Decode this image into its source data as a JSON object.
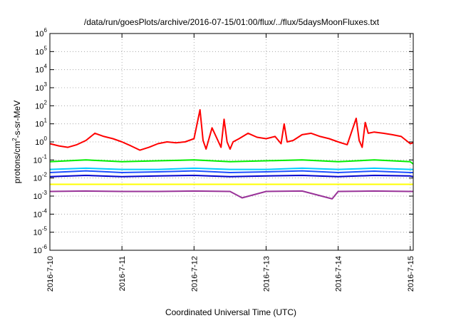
{
  "chart_data": {
    "type": "line",
    "title": "/data/run/goesPlots/archive/2016-07-15/01:00/flux/../flux/5daysMoonFluxes.txt",
    "xlabel": "Coordinated Universal Time (UTC)",
    "ylabel": "protons/cm2-s-sr-MeV",
    "ylabel_parts": [
      "protons/cm",
      "2",
      "-s-sr-MeV"
    ],
    "x_ticks": [
      "2016-7-10",
      "2016-7-11",
      "2016-7-12",
      "2016-7-13",
      "2016-7-14",
      "2016-7-15"
    ],
    "xlim": [
      "2016-07-10T00:00",
      "2016-07-15T01:00"
    ],
    "y_scale": "log",
    "ylim": [
      1e-06,
      1000000.0
    ],
    "y_ticks": [
      {
        "base": "10",
        "exp": "-6"
      },
      {
        "base": "10",
        "exp": "-5"
      },
      {
        "base": "10",
        "exp": "-4"
      },
      {
        "base": "10",
        "exp": "-3"
      },
      {
        "base": "10",
        "exp": "-2"
      },
      {
        "base": "10",
        "exp": "-1"
      },
      {
        "base": "10",
        "exp": "0"
      },
      {
        "base": "10",
        "exp": "1"
      },
      {
        "base": "10",
        "exp": "2"
      },
      {
        "base": "10",
        "exp": "3"
      },
      {
        "base": "10",
        "exp": "4"
      },
      {
        "base": "10",
        "exp": "5"
      },
      {
        "base": "10",
        "exp": "6"
      }
    ],
    "grid": true,
    "series": [
      {
        "color": "#ff0000",
        "x": [
          "2016-07-10T00:00",
          "2016-07-10T03:00",
          "2016-07-10T06:00",
          "2016-07-10T09:00",
          "2016-07-10T12:00",
          "2016-07-10T15:00",
          "2016-07-10T18:00",
          "2016-07-10T21:00",
          "2016-07-11T00:00",
          "2016-07-11T03:00",
          "2016-07-11T06:00",
          "2016-07-11T09:00",
          "2016-07-11T12:00",
          "2016-07-11T15:00",
          "2016-07-11T18:00",
          "2016-07-11T21:00",
          "2016-07-12T00:00",
          "2016-07-12T02:00",
          "2016-07-12T03:00",
          "2016-07-12T04:00",
          "2016-07-12T06:00",
          "2016-07-12T09:00",
          "2016-07-12T10:00",
          "2016-07-12T11:00",
          "2016-07-12T12:00",
          "2016-07-12T13:00",
          "2016-07-12T15:00",
          "2016-07-12T18:00",
          "2016-07-12T21:00",
          "2016-07-13T00:00",
          "2016-07-13T03:00",
          "2016-07-13T05:00",
          "2016-07-13T06:00",
          "2016-07-13T07:00",
          "2016-07-13T09:00",
          "2016-07-13T12:00",
          "2016-07-13T15:00",
          "2016-07-13T18:00",
          "2016-07-13T21:00",
          "2016-07-14T00:00",
          "2016-07-14T03:00",
          "2016-07-14T06:00",
          "2016-07-14T07:00",
          "2016-07-14T08:00",
          "2016-07-14T09:00",
          "2016-07-14T10:00",
          "2016-07-14T12:00",
          "2016-07-14T15:00",
          "2016-07-14T18:00",
          "2016-07-14T21:00",
          "2016-07-15T00:00",
          "2016-07-15T01:00"
        ],
        "y": [
          0.8,
          0.6,
          0.5,
          0.7,
          1.2,
          3.0,
          2.0,
          1.5,
          1.0,
          0.6,
          0.35,
          0.5,
          0.8,
          1.0,
          0.9,
          1.0,
          1.5,
          60.0,
          1.2,
          0.4,
          6.0,
          0.5,
          18.0,
          1.0,
          0.4,
          1.0,
          1.5,
          3.0,
          1.8,
          1.5,
          2.0,
          0.8,
          10.0,
          1.0,
          1.2,
          2.5,
          3.0,
          2.0,
          1.5,
          1.0,
          0.7,
          20.0,
          1.2,
          0.5,
          12.0,
          3.0,
          3.5,
          3.0,
          2.5,
          2.0,
          0.8,
          0.9
        ]
      },
      {
        "color": "#00ee00",
        "x": [
          "2016-07-10T00:00",
          "2016-07-10T12:00",
          "2016-07-11T00:00",
          "2016-07-11T12:00",
          "2016-07-12T00:00",
          "2016-07-12T12:00",
          "2016-07-13T00:00",
          "2016-07-13T12:00",
          "2016-07-14T00:00",
          "2016-07-14T12:00",
          "2016-07-15T00:00",
          "2016-07-15T01:00"
        ],
        "y": [
          0.08,
          0.1,
          0.08,
          0.09,
          0.1,
          0.08,
          0.09,
          0.1,
          0.08,
          0.1,
          0.08,
          0.06
        ]
      },
      {
        "color": "#00ccff",
        "x": [
          "2016-07-10T00:00",
          "2016-07-10T12:00",
          "2016-07-11T00:00",
          "2016-07-11T12:00",
          "2016-07-12T00:00",
          "2016-07-12T12:00",
          "2016-07-13T00:00",
          "2016-07-13T12:00",
          "2016-07-14T00:00",
          "2016-07-14T12:00",
          "2016-07-15T00:00",
          "2016-07-15T01:00"
        ],
        "y": [
          0.03,
          0.035,
          0.03,
          0.03,
          0.035,
          0.03,
          0.03,
          0.035,
          0.03,
          0.035,
          0.03,
          0.03
        ]
      },
      {
        "color": "#1e50ff",
        "x": [
          "2016-07-10T00:00",
          "2016-07-10T12:00",
          "2016-07-11T00:00",
          "2016-07-11T12:00",
          "2016-07-12T00:00",
          "2016-07-12T12:00",
          "2016-07-13T00:00",
          "2016-07-13T12:00",
          "2016-07-14T00:00",
          "2016-07-14T12:00",
          "2016-07-15T00:00",
          "2016-07-15T01:00"
        ],
        "y": [
          0.02,
          0.025,
          0.02,
          0.022,
          0.025,
          0.02,
          0.022,
          0.025,
          0.02,
          0.024,
          0.02,
          0.02
        ]
      },
      {
        "color": "#0000cc",
        "x": [
          "2016-07-10T00:00",
          "2016-07-10T12:00",
          "2016-07-11T00:00",
          "2016-07-11T12:00",
          "2016-07-12T00:00",
          "2016-07-12T12:00",
          "2016-07-13T00:00",
          "2016-07-13T12:00",
          "2016-07-14T00:00",
          "2016-07-14T12:00",
          "2016-07-15T00:00",
          "2016-07-15T01:00"
        ],
        "y": [
          0.012,
          0.014,
          0.012,
          0.013,
          0.014,
          0.012,
          0.013,
          0.014,
          0.012,
          0.014,
          0.013,
          0.012
        ]
      },
      {
        "color": "#ffff00",
        "x": [
          "2016-07-10T00:00",
          "2016-07-10T12:00",
          "2016-07-11T00:00",
          "2016-07-11T12:00",
          "2016-07-12T00:00",
          "2016-07-12T12:00",
          "2016-07-13T00:00",
          "2016-07-13T12:00",
          "2016-07-14T00:00",
          "2016-07-14T12:00",
          "2016-07-15T00:00",
          "2016-07-15T01:00"
        ],
        "y": [
          0.0045,
          0.0045,
          0.0045,
          0.0045,
          0.0045,
          0.0045,
          0.0045,
          0.0045,
          0.0045,
          0.0045,
          0.0045,
          0.0045
        ]
      },
      {
        "color": "#993399",
        "x": [
          "2016-07-10T00:00",
          "2016-07-10T12:00",
          "2016-07-11T00:00",
          "2016-07-11T12:00",
          "2016-07-12T00:00",
          "2016-07-12T12:00",
          "2016-07-12T16:00",
          "2016-07-13T00:00",
          "2016-07-13T12:00",
          "2016-07-13T22:00",
          "2016-07-14T00:00",
          "2016-07-14T12:00",
          "2016-07-15T00:00",
          "2016-07-15T01:00"
        ],
        "y": [
          0.0018,
          0.0019,
          0.0018,
          0.0018,
          0.0019,
          0.0018,
          0.0008,
          0.0018,
          0.0019,
          0.0007,
          0.0018,
          0.0019,
          0.0018,
          0.0018
        ]
      }
    ]
  }
}
